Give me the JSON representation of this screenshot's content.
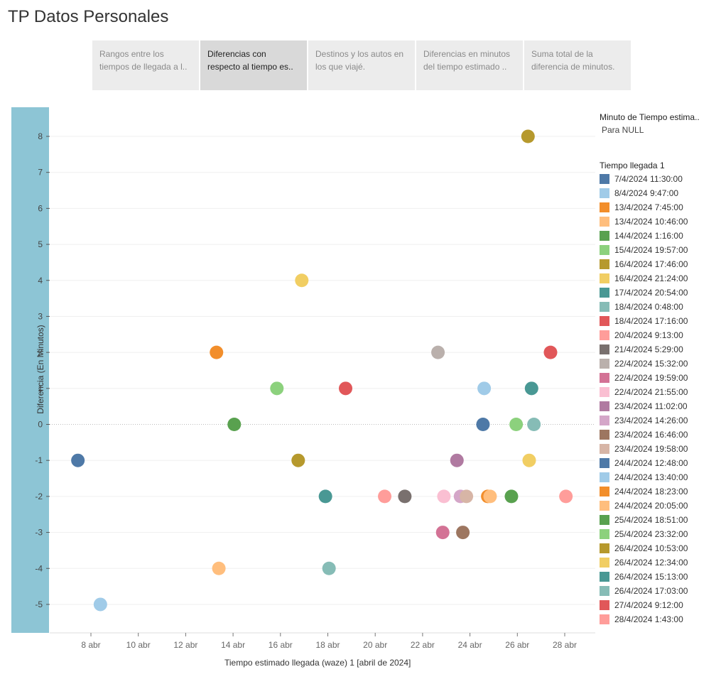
{
  "title": "TP Datos Personales",
  "tabs": [
    {
      "label": "Rangos entre los tiempos de llegada a l..",
      "active": false
    },
    {
      "label": "Diferencias con respecto al tiempo es..",
      "active": true
    },
    {
      "label": "Destinos y los autos en los que viajé.",
      "active": false
    },
    {
      "label": "Diferencias en minutos del tiempo estimado ..",
      "active": false
    },
    {
      "label": "Suma total de la diferencia de minutos.",
      "active": false
    }
  ],
  "legend": {
    "filter_title": "Minuto de Tiempo estima..",
    "filter_value": "Para NULL",
    "color_title": "Tiempo llegada 1"
  },
  "chart_data": {
    "type": "scatter",
    "xlabel": "Tiempo estimado llegada (waze) 1 [abril de 2024]",
    "ylabel": "Diferencia (En Minutos)",
    "ylim": [
      -5.8,
      8.8
    ],
    "xlim": [
      6.2,
      29.5
    ],
    "yticks": [
      8,
      7,
      6,
      5,
      4,
      3,
      2,
      1,
      0,
      -1,
      -2,
      -3,
      -4,
      -5
    ],
    "xticks": [
      {
        "day": 8,
        "label": "8 abr"
      },
      {
        "day": 10,
        "label": "10 abr"
      },
      {
        "day": 12,
        "label": "12 abr"
      },
      {
        "day": 14,
        "label": "14 abr"
      },
      {
        "day": 16,
        "label": "16 abr"
      },
      {
        "day": 18,
        "label": "18 abr"
      },
      {
        "day": 20,
        "label": "20 abr"
      },
      {
        "day": 22,
        "label": "22 abr"
      },
      {
        "day": 24,
        "label": "24 abr"
      },
      {
        "day": 26,
        "label": "26 abr"
      },
      {
        "day": 28,
        "label": "28 abr"
      }
    ],
    "grid": true,
    "legend_position": "right",
    "series": [
      {
        "name": "7/4/2024 11:30:00",
        "color": "#4e79a7",
        "x": 7.45,
        "y": -1
      },
      {
        "name": "8/4/2024 9:47:00",
        "color": "#a0cbe8",
        "x": 8.4,
        "y": -5
      },
      {
        "name": "13/4/2024 7:45:00",
        "color": "#f28e2b",
        "x": 13.3,
        "y": 2
      },
      {
        "name": "13/4/2024 10:46:00",
        "color": "#ffbe7d",
        "x": 13.4,
        "y": -4
      },
      {
        "name": "14/4/2024 1:16:00",
        "color": "#59a14f",
        "x": 14.05,
        "y": 0
      },
      {
        "name": "15/4/2024 19:57:00",
        "color": "#8cd17d",
        "x": 15.85,
        "y": 1
      },
      {
        "name": "16/4/2024 17:46:00",
        "color": "#b6992d",
        "x": 16.75,
        "y": -1
      },
      {
        "name": "16/4/2024 21:24:00",
        "color": "#f1ce63",
        "x": 16.9,
        "y": 4
      },
      {
        "name": "17/4/2024 20:54:00",
        "color": "#499894",
        "x": 17.9,
        "y": -2
      },
      {
        "name": "18/4/2024 0:48:00",
        "color": "#86bcb6",
        "x": 18.05,
        "y": -4
      },
      {
        "name": "18/4/2024 17:16:00",
        "color": "#e15759",
        "x": 18.75,
        "y": 1
      },
      {
        "name": "20/4/2024 9:13:00",
        "color": "#ff9d9a",
        "x": 20.4,
        "y": -2
      },
      {
        "name": "21/4/2024 5:29:00",
        "color": "#79706e",
        "x": 21.25,
        "y": -2
      },
      {
        "name": "22/4/2024 15:32:00",
        "color": "#bab0ac",
        "x": 22.65,
        "y": 2
      },
      {
        "name": "22/4/2024 19:59:00",
        "color": "#d37295",
        "x": 22.85,
        "y": -3
      },
      {
        "name": "22/4/2024 21:55:00",
        "color": "#fabfd2",
        "x": 22.9,
        "y": -2
      },
      {
        "name": "23/4/2024 11:02:00",
        "color": "#b07aa1",
        "x": 23.45,
        "y": -1
      },
      {
        "name": "23/4/2024 14:26:00",
        "color": "#d4a6c8",
        "x": 23.6,
        "y": -2
      },
      {
        "name": "23/4/2024 16:46:00",
        "color": "#9d7660",
        "x": 23.7,
        "y": -3
      },
      {
        "name": "23/4/2024 19:58:00",
        "color": "#d7b5a6",
        "x": 23.85,
        "y": -2
      },
      {
        "name": "24/4/2024 12:48:00",
        "color": "#4e79a7",
        "x": 24.55,
        "y": 0
      },
      {
        "name": "24/4/2024 13:40:00",
        "color": "#a0cbe8",
        "x": 24.6,
        "y": 1
      },
      {
        "name": "24/4/2024 18:23:00",
        "color": "#f28e2b",
        "x": 24.75,
        "y": -2
      },
      {
        "name": "24/4/2024 20:05:00",
        "color": "#ffbe7d",
        "x": 24.85,
        "y": -2
      },
      {
        "name": "25/4/2024 18:51:00",
        "color": "#59a14f",
        "x": 25.75,
        "y": -2
      },
      {
        "name": "25/4/2024 23:32:00",
        "color": "#8cd17d",
        "x": 25.95,
        "y": 0
      },
      {
        "name": "26/4/2024 10:53:00",
        "color": "#b6992d",
        "x": 26.45,
        "y": 8
      },
      {
        "name": "26/4/2024 12:34:00",
        "color": "#f1ce63",
        "x": 26.5,
        "y": -1
      },
      {
        "name": "26/4/2024 15:13:00",
        "color": "#499894",
        "x": 26.6,
        "y": 1
      },
      {
        "name": "26/4/2024 17:03:00",
        "color": "#86bcb6",
        "x": 26.7,
        "y": 0
      },
      {
        "name": "27/4/2024 9:12:00",
        "color": "#e15759",
        "x": 27.4,
        "y": 2
      },
      {
        "name": "28/4/2024 1:43:00",
        "color": "#ff9d9a",
        "x": 28.05,
        "y": -2
      }
    ]
  }
}
